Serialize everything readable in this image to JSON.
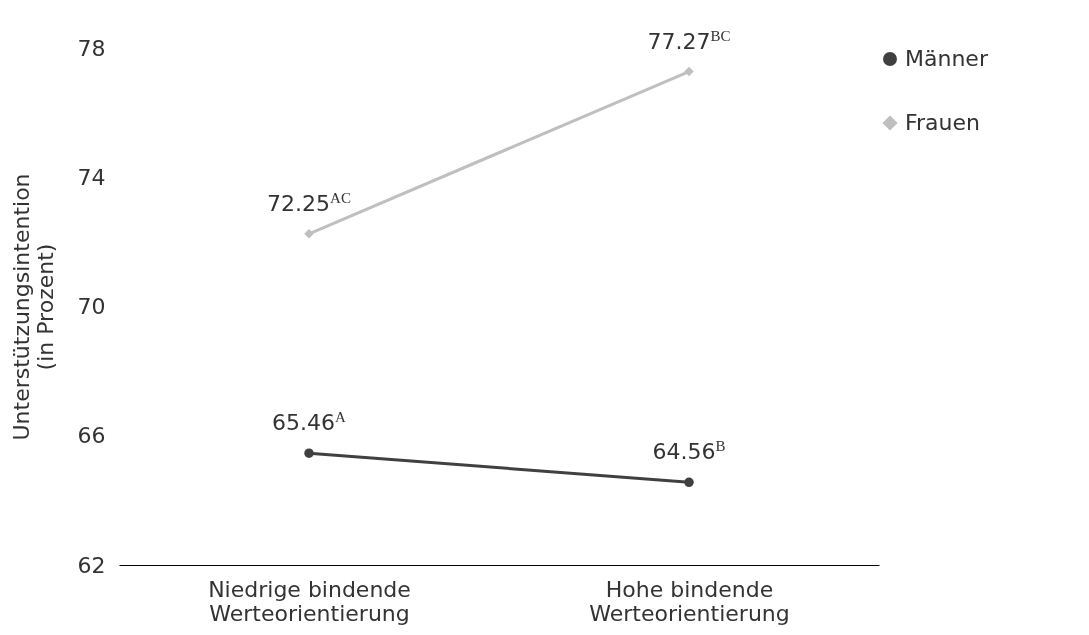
{
  "chart_data": {
    "type": "line",
    "ylabel": "Unterstützungsintention (in Prozent)",
    "categories": [
      "Niedrige bindende Werteorientierung",
      "Hohe bindende Werteorientierung"
    ],
    "series": [
      {
        "name": "Männer",
        "color": "#404040",
        "marker": "circle",
        "values": [
          65.46,
          64.56
        ],
        "value_labels": [
          "65.46$^{A}$",
          "64.56$^{B}$"
        ]
      },
      {
        "name": "Frauen",
        "color": "#bfbfbf",
        "marker": "diamond",
        "values": [
          72.25,
          77.27
        ],
        "value_labels": [
          "72.25$^{AC}$",
          "77.27$^{BC}$"
        ]
      }
    ],
    "ylim": [
      62,
      78
    ],
    "yticks": [
      62,
      66,
      70,
      74,
      78
    ],
    "grid": false,
    "legend": "right"
  }
}
